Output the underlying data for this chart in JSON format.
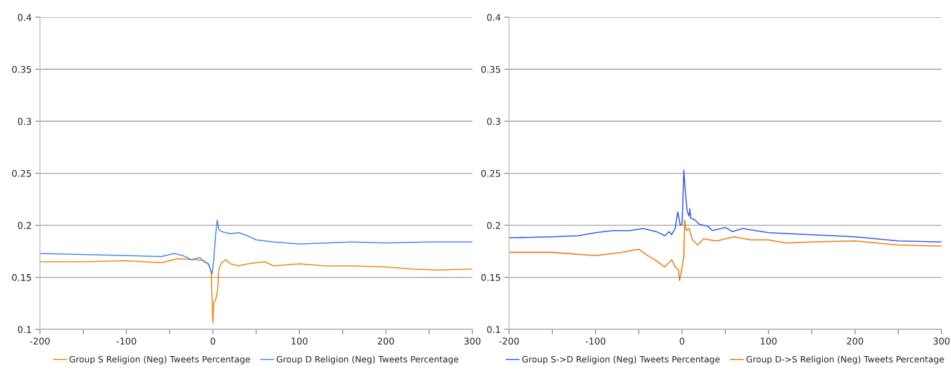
{
  "chart_data": [
    {
      "type": "line",
      "xlim": [
        -200,
        300
      ],
      "ylim": [
        0.1,
        0.4
      ],
      "xticks": [
        -200,
        {
          "value": -150,
          "label": null
        },
        -100,
        {
          "value": -50,
          "label": null
        },
        0,
        {
          "value": 50,
          "label": null
        },
        100,
        {
          "value": 150,
          "label": null
        },
        200,
        {
          "value": 250,
          "label": null
        },
        300
      ],
      "yticks": [
        0.1,
        0.15,
        0.2,
        0.25,
        0.3,
        0.35,
        0.4
      ],
      "grid": "y",
      "legend": "bottom",
      "series": [
        {
          "name": "Group S Religion (Neg) Tweets Percentage",
          "color": "#f08a0c",
          "x": [
            -200,
            -150,
            -100,
            -60,
            -40,
            -20,
            -10,
            -5,
            -2,
            0,
            1,
            3,
            5,
            7,
            10,
            15,
            20,
            30,
            40,
            60,
            70,
            100,
            130,
            160,
            200,
            230,
            260,
            300
          ],
          "values": [
            0.165,
            0.165,
            0.166,
            0.164,
            0.168,
            0.167,
            0.166,
            0.162,
            0.155,
            0.106,
            0.126,
            0.128,
            0.135,
            0.158,
            0.164,
            0.167,
            0.163,
            0.161,
            0.163,
            0.165,
            0.161,
            0.163,
            0.161,
            0.161,
            0.16,
            0.158,
            0.157,
            0.158
          ]
        },
        {
          "name": "Group D Religion (Neg) Tweets Percentage",
          "color": "#4a86f7",
          "x": [
            -200,
            -150,
            -100,
            -60,
            -45,
            -35,
            -25,
            -15,
            -10,
            -5,
            -1,
            1,
            3,
            5,
            7,
            10,
            20,
            30,
            40,
            50,
            70,
            100,
            130,
            160,
            200,
            250,
            300
          ],
          "values": [
            0.173,
            0.172,
            0.171,
            0.17,
            0.173,
            0.171,
            0.167,
            0.169,
            0.165,
            0.163,
            0.153,
            0.167,
            0.19,
            0.205,
            0.196,
            0.194,
            0.192,
            0.193,
            0.19,
            0.186,
            0.184,
            0.182,
            0.183,
            0.184,
            0.183,
            0.184,
            0.184
          ]
        }
      ]
    },
    {
      "type": "line",
      "xlim": [
        -200,
        300
      ],
      "ylim": [
        0.1,
        0.4
      ],
      "xticks": [
        -200,
        {
          "value": -150,
          "label": null
        },
        -100,
        {
          "value": -50,
          "label": null
        },
        0,
        {
          "value": 50,
          "label": null
        },
        100,
        {
          "value": 150,
          "label": null
        },
        200,
        {
          "value": 250,
          "label": null
        },
        300
      ],
      "yticks": [
        0.1,
        0.15,
        0.2,
        0.25,
        0.3,
        0.35,
        0.4
      ],
      "grid": "y",
      "legend": "bottom",
      "series": [
        {
          "name": "Group S->D Religion (Neg) Tweets Percentage",
          "color": "#2f5cf5",
          "x": [
            -200,
            -150,
            -120,
            -100,
            -80,
            -60,
            -45,
            -30,
            -20,
            -15,
            -12,
            -8,
            -5,
            -2,
            0,
            1,
            2,
            4,
            6,
            8,
            9,
            10,
            15,
            20,
            30,
            35,
            50,
            58,
            70,
            100,
            150,
            200,
            250,
            300
          ],
          "values": [
            0.188,
            0.189,
            0.19,
            0.193,
            0.195,
            0.195,
            0.197,
            0.194,
            0.19,
            0.194,
            0.191,
            0.197,
            0.213,
            0.2,
            0.201,
            0.225,
            0.253,
            0.23,
            0.213,
            0.209,
            0.216,
            0.207,
            0.205,
            0.201,
            0.199,
            0.195,
            0.198,
            0.194,
            0.197,
            0.193,
            0.191,
            0.189,
            0.185,
            0.184
          ]
        },
        {
          "name": "Group D->S Religion (Neg) Tweets Percentage",
          "color": "#f4780f",
          "x": [
            -200,
            -150,
            -100,
            -70,
            -50,
            -40,
            -30,
            -20,
            -12,
            -8,
            -4,
            -3,
            -1,
            0,
            2,
            3,
            5,
            8,
            12,
            18,
            25,
            40,
            60,
            80,
            100,
            120,
            150,
            200,
            250,
            300
          ],
          "values": [
            0.174,
            0.174,
            0.171,
            0.174,
            0.177,
            0.171,
            0.166,
            0.16,
            0.167,
            0.16,
            0.157,
            0.147,
            0.155,
            0.16,
            0.17,
            0.205,
            0.195,
            0.197,
            0.186,
            0.181,
            0.187,
            0.185,
            0.189,
            0.186,
            0.186,
            0.183,
            0.184,
            0.185,
            0.181,
            0.18
          ]
        }
      ]
    }
  ]
}
